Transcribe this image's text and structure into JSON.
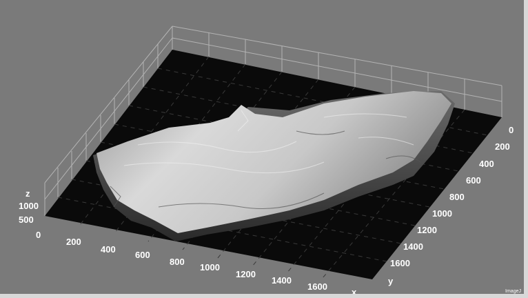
{
  "viewer": {
    "watermark": "ImageJ"
  },
  "chart_data": {
    "type": "surface",
    "x_ticks": [
      "200",
      "400",
      "600",
      "800",
      "1000",
      "1200",
      "1400",
      "1600"
    ],
    "x_origin_label": "0",
    "x_title": "x",
    "y_ticks": [
      "0",
      "200",
      "400",
      "600",
      "800",
      "1000",
      "1200",
      "1400",
      "1600"
    ],
    "y_title": "y",
    "z_ticks": [
      "1000",
      "500"
    ],
    "z_title": "z",
    "grid": true,
    "colors": {
      "background": "#7a7a7a",
      "floor": "#0a0a0a",
      "grid": "#b0b0b0",
      "surface_light": "#e8e8e8",
      "surface_dark": "#4a4a4a"
    }
  }
}
